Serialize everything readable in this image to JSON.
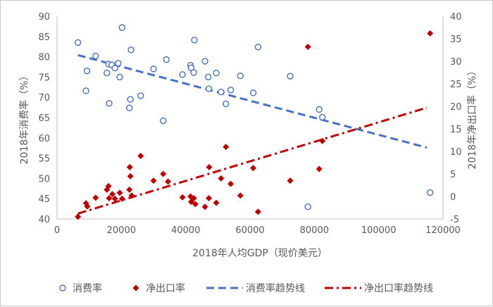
{
  "chart_data": {
    "type": "scatter",
    "xlabel": "2018年人均GDP（现价美元）",
    "ylabel_left": "2018年消费率（%）",
    "ylabel_right": "2018年净出口率（%）",
    "xlim": [
      0,
      120000
    ],
    "xticks": [
      "0",
      "20000",
      "40000",
      "60000",
      "80000",
      "100000",
      "120000"
    ],
    "ylim_left": [
      40,
      90
    ],
    "yticks_left": [
      "40",
      "45",
      "50",
      "55",
      "60",
      "65",
      "70",
      "75",
      "80",
      "85",
      "90"
    ],
    "ylim_right": [
      -5,
      40
    ],
    "yticks_right": [
      "-5",
      "0",
      "5",
      "10",
      "15",
      "20",
      "25",
      "30",
      "35",
      "40"
    ],
    "grid": false,
    "legend_position": "bottom",
    "colors": {
      "consumption": "#4472C4",
      "net_export": "#C00000",
      "axis": "#bfbfbf",
      "text": "#595959"
    },
    "series": [
      {
        "name": "消费率",
        "axis": "left",
        "marker": "circle-open",
        "points": [
          [
            6500,
            83.5
          ],
          [
            9000,
            71.6
          ],
          [
            9300,
            76.5
          ],
          [
            12000,
            80.2
          ],
          [
            15500,
            76.0
          ],
          [
            16000,
            78.2
          ],
          [
            16200,
            68.5
          ],
          [
            17000,
            78.0
          ],
          [
            18000,
            77.2
          ],
          [
            19000,
            78.4
          ],
          [
            19500,
            75.0
          ],
          [
            20200,
            87.2
          ],
          [
            22500,
            67.4
          ],
          [
            22800,
            69.5
          ],
          [
            23000,
            81.7
          ],
          [
            26000,
            70.4
          ],
          [
            30000,
            77.0
          ],
          [
            33000,
            64.2
          ],
          [
            34000,
            79.3
          ],
          [
            39000,
            75.6
          ],
          [
            41500,
            77.9
          ],
          [
            41700,
            77.3
          ],
          [
            42500,
            76.1
          ],
          [
            42700,
            84.1
          ],
          [
            46000,
            78.9
          ],
          [
            47000,
            75.0
          ],
          [
            47200,
            72.1
          ],
          [
            49500,
            76.0
          ],
          [
            51000,
            71.3
          ],
          [
            52500,
            68.4
          ],
          [
            54000,
            71.8
          ],
          [
            57000,
            75.3
          ],
          [
            61000,
            71.1
          ],
          [
            62500,
            82.4
          ],
          [
            72500,
            75.2
          ],
          [
            78000,
            43.0
          ],
          [
            81500,
            67.0
          ],
          [
            82500,
            65.1
          ],
          [
            116000,
            46.5
          ]
        ]
      },
      {
        "name": "净出口率",
        "axis": "right",
        "marker": "diamond-filled",
        "points": [
          [
            6500,
            -4.5
          ],
          [
            9000,
            -1.5
          ],
          [
            9400,
            -2.2
          ],
          [
            12000,
            -0.3
          ],
          [
            15500,
            1.5
          ],
          [
            16000,
            2.3
          ],
          [
            16200,
            -0.4
          ],
          [
            17200,
            0.5
          ],
          [
            18000,
            -0.5
          ],
          [
            19500,
            0.8
          ],
          [
            20200,
            -0.5
          ],
          [
            22500,
            1.5
          ],
          [
            22600,
            6.5
          ],
          [
            22800,
            4.5
          ],
          [
            23200,
            0.2
          ],
          [
            26000,
            9.0
          ],
          [
            30000,
            3.5
          ],
          [
            33000,
            5.0
          ],
          [
            34500,
            3.3
          ],
          [
            39000,
            -0.2
          ],
          [
            41500,
            0.0
          ],
          [
            41700,
            -1.2
          ],
          [
            42500,
            -0.4
          ],
          [
            43000,
            -1.7
          ],
          [
            46000,
            -2.3
          ],
          [
            47200,
            -0.4
          ],
          [
            47300,
            6.5
          ],
          [
            49500,
            -1.4
          ],
          [
            51000,
            4.0
          ],
          [
            52500,
            11.0
          ],
          [
            54000,
            2.8
          ],
          [
            57000,
            0.2
          ],
          [
            61000,
            6.3
          ],
          [
            62500,
            -3.4
          ],
          [
            72500,
            3.5
          ],
          [
            78000,
            33.2
          ],
          [
            81500,
            6.1
          ],
          [
            82500,
            12.3
          ],
          [
            116000,
            36.2
          ]
        ]
      }
    ],
    "trendlines": [
      {
        "name": "消费率趋势线",
        "axis": "left",
        "style": "dashed",
        "x": [
          6500,
          115000
        ],
        "y": [
          80.4,
          57.6
        ]
      },
      {
        "name": "净出口率趋势线",
        "axis": "right",
        "style": "dash-dot",
        "x": [
          6500,
          115000
        ],
        "y": [
          -3.8,
          19.7
        ]
      }
    ],
    "legend": [
      {
        "key": "consumption",
        "label": "消费率",
        "marker": "circle-open"
      },
      {
        "key": "net_export",
        "label": "净出口率",
        "marker": "diamond-filled"
      },
      {
        "key": "consumption_trend",
        "label": "消费率趋势线",
        "marker": "dashed-line"
      },
      {
        "key": "net_export_trend",
        "label": "净出口率趋势线",
        "marker": "dash-dot-line"
      }
    ]
  }
}
